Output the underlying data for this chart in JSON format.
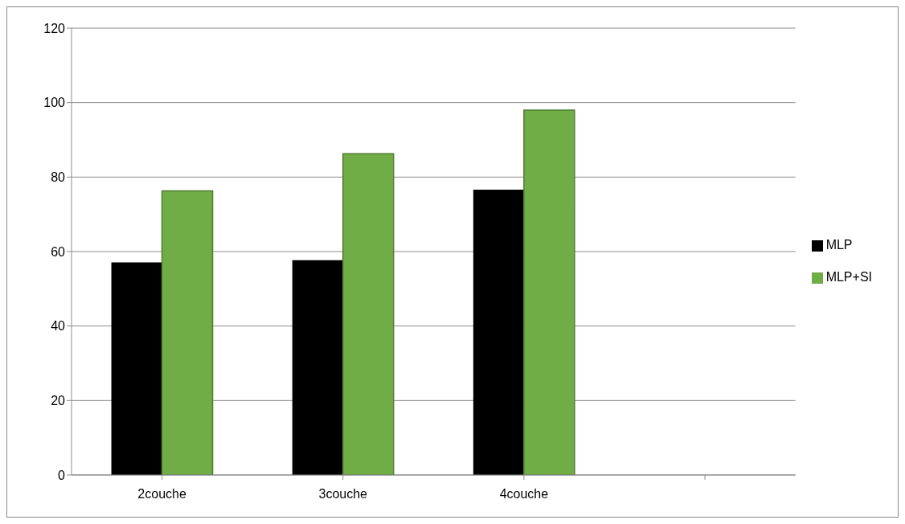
{
  "chart_data": {
    "type": "bar",
    "categories": [
      "2couche",
      "3couche",
      "4couche",
      null
    ],
    "series": [
      {
        "name": "MLP",
        "color": "#000000",
        "values": [
          57.1,
          57.7,
          76.6,
          null
        ]
      },
      {
        "name": "MLP+SI",
        "color": "#70ad47",
        "values": [
          76.3,
          86.3,
          98.0,
          null
        ]
      }
    ],
    "ylim": [
      0,
      120
    ],
    "yticks": [
      0,
      20,
      40,
      60,
      80,
      100,
      120
    ],
    "grid": "y",
    "legend": "right"
  }
}
